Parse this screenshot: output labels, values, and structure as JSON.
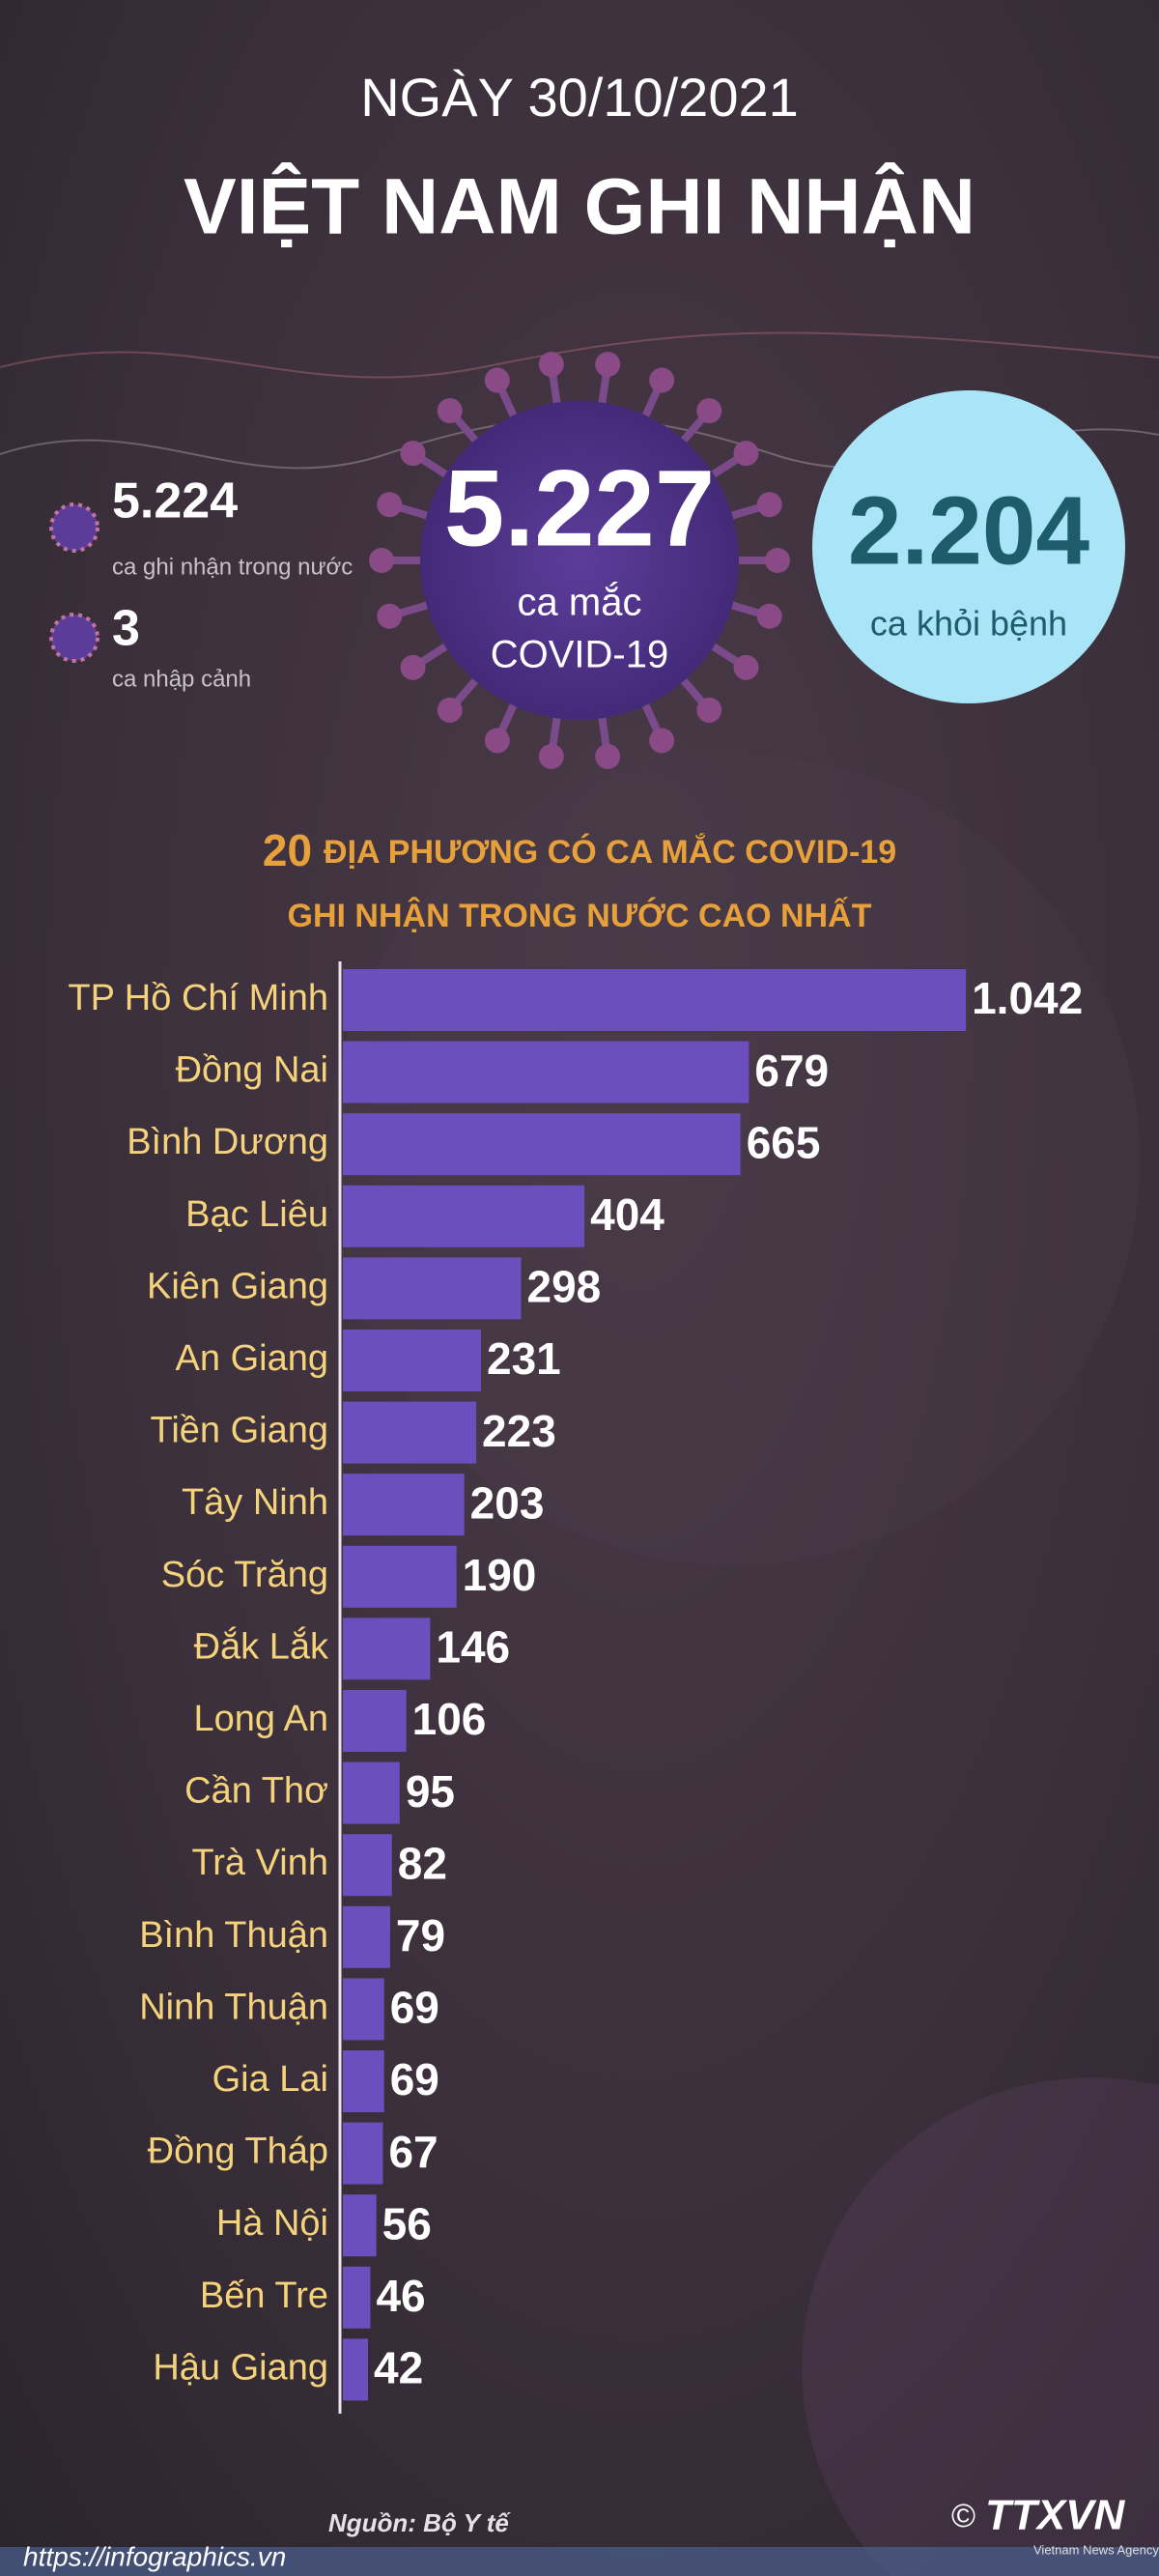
{
  "header": {
    "date": "NGÀY 30/10/2021",
    "title": "VIỆT NAM GHI NHẬN"
  },
  "summary": {
    "total": {
      "number": "5.227",
      "line1": "ca mắc",
      "line2": "COVID-19"
    },
    "recovered": {
      "number": "2.204",
      "label": "ca khỏi bệnh"
    },
    "domestic": {
      "number": "5.224",
      "label": "ca ghi nhận trong nước"
    },
    "imported": {
      "number": "3",
      "label": "ca nhập cảnh"
    }
  },
  "chart_data": {
    "type": "bar",
    "orientation": "horizontal",
    "title_number": "20",
    "title": "ĐỊA PHƯƠNG CÓ CA MẮC COVID-19",
    "subtitle": "GHI NHẬN TRONG NƯỚC CAO NHẤT",
    "categories": [
      "TP Hồ Chí Minh",
      "Đồng Nai",
      "Bình Dương",
      "Bạc Liêu",
      "Kiên Giang",
      "An Giang",
      "Tiền Giang",
      "Tây Ninh",
      "Sóc Trăng",
      "Đắk Lắk",
      "Long An",
      "Cần Thơ",
      "Trà Vinh",
      "Bình Thuận",
      "Ninh Thuận",
      "Gia Lai",
      "Đồng Tháp",
      "Hà Nội",
      "Bến Tre",
      "Hậu Giang"
    ],
    "values": [
      1042,
      679,
      665,
      404,
      298,
      231,
      223,
      203,
      190,
      146,
      106,
      95,
      82,
      79,
      69,
      69,
      67,
      56,
      46,
      42
    ],
    "value_labels": [
      "1.042",
      "679",
      "665",
      "404",
      "298",
      "231",
      "223",
      "203",
      "190",
      "146",
      "106",
      "95",
      "82",
      "79",
      "69",
      "69",
      "67",
      "56",
      "46",
      "42"
    ],
    "color": "#6b4fbf",
    "xlim": [
      0,
      1100
    ]
  },
  "footer": {
    "source": "Nguồn: Bộ Y tế",
    "url": "https://infographics.vn",
    "copyright": "©",
    "logo": "TTXVN",
    "agency": "Vietnam News Agency"
  }
}
